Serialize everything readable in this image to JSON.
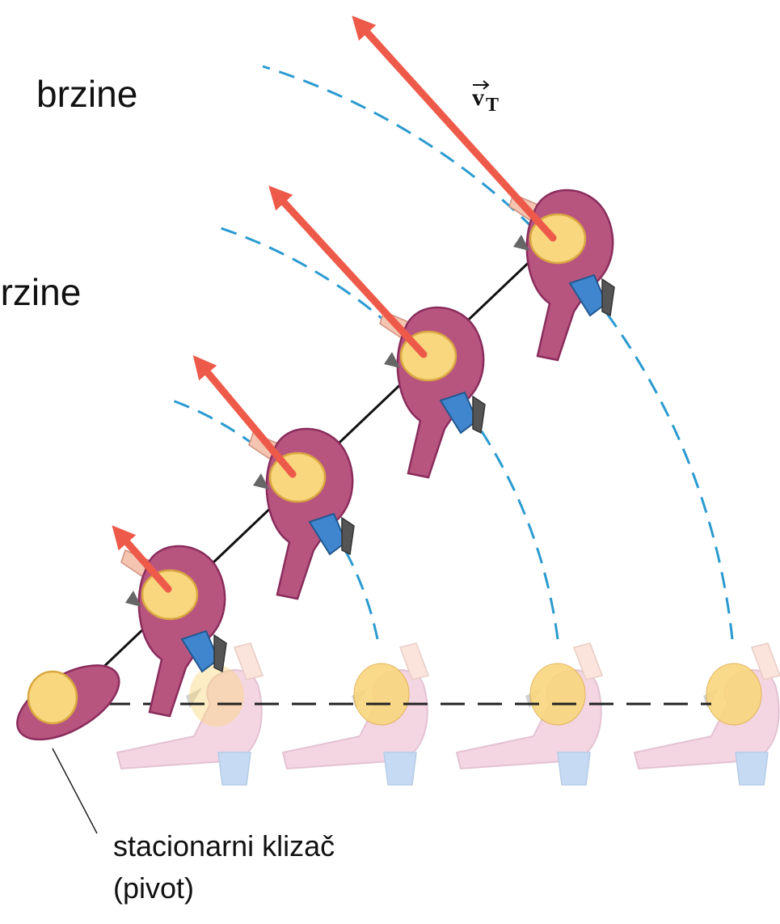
{
  "labels": {
    "top": "brzine",
    "middle": "brzine",
    "vector": "v",
    "vector_sub": "T",
    "pivot_line1": "stacionarni klizač",
    "pivot_line2": "(pivot)"
  }
}
